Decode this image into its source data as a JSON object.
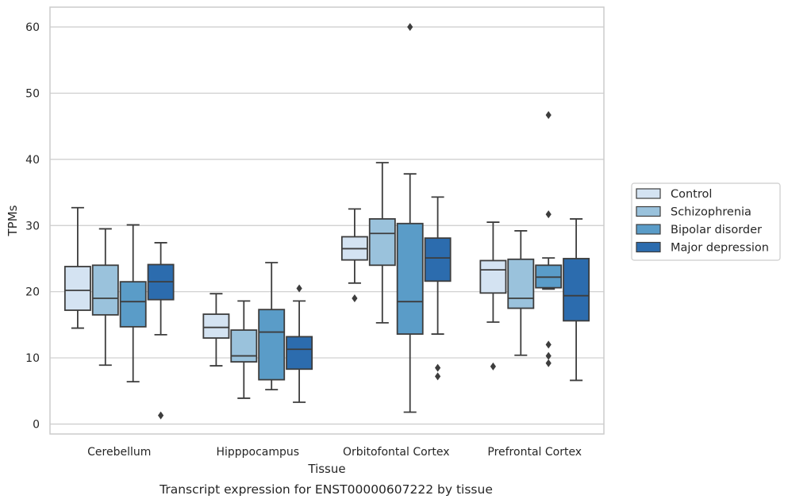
{
  "chart_data": {
    "type": "box",
    "title": "",
    "caption": "Transcript expression for ENST00000607222 by tissue",
    "xlabel": "Tissue",
    "ylabel": "TPMs",
    "ylim": [
      -1.5,
      63
    ],
    "yticks": [
      0,
      10,
      20,
      30,
      40,
      50,
      60
    ],
    "grid": "horizontal",
    "legend": "right-outside",
    "categories": [
      "Cerebellum",
      "Hipppocampus",
      "Orbitofontal Cortex",
      "Prefrontal Cortex"
    ],
    "series": [
      {
        "name": "Control",
        "color": "#d4e3f2",
        "boxes": [
          {
            "whislo": 14.5,
            "q1": 17.2,
            "med": 20.2,
            "q3": 23.8,
            "whishi": 32.7,
            "fliers": []
          },
          {
            "whislo": 8.8,
            "q1": 13.0,
            "med": 14.6,
            "q3": 16.6,
            "whishi": 19.7,
            "fliers": []
          },
          {
            "whislo": 21.3,
            "q1": 24.8,
            "med": 26.5,
            "q3": 28.3,
            "whishi": 32.5,
            "fliers": [
              19.0
            ]
          },
          {
            "whislo": 15.4,
            "q1": 19.8,
            "med": 23.3,
            "q3": 24.7,
            "whishi": 30.5,
            "fliers": [
              8.7
            ]
          }
        ]
      },
      {
        "name": "Schizophrenia",
        "color": "#9ac2dc",
        "boxes": [
          {
            "whislo": 8.9,
            "q1": 16.5,
            "med": 19.0,
            "q3": 24.0,
            "whishi": 29.5,
            "fliers": []
          },
          {
            "whislo": 3.9,
            "q1": 9.4,
            "med": 10.3,
            "q3": 14.2,
            "whishi": 18.6,
            "fliers": []
          },
          {
            "whislo": 15.3,
            "q1": 24.0,
            "med": 28.8,
            "q3": 31.0,
            "whishi": 39.5,
            "fliers": []
          },
          {
            "whislo": 10.4,
            "q1": 17.5,
            "med": 19.0,
            "q3": 24.9,
            "whishi": 29.2,
            "fliers": []
          }
        ]
      },
      {
        "name": "Bipolar disorder",
        "color": "#5a9cc8",
        "boxes": [
          {
            "whislo": 6.4,
            "q1": 14.7,
            "med": 18.5,
            "q3": 21.5,
            "whishi": 30.1,
            "fliers": []
          },
          {
            "whislo": 5.2,
            "q1": 6.7,
            "med": 13.9,
            "q3": 17.3,
            "whishi": 24.4,
            "fliers": []
          },
          {
            "whislo": 1.8,
            "q1": 13.6,
            "med": 18.5,
            "q3": 30.3,
            "whishi": 37.8,
            "fliers": [
              60.0
            ]
          },
          {
            "whislo": 20.4,
            "q1": 20.6,
            "med": 22.2,
            "q3": 24.0,
            "whishi": 25.1,
            "fliers": [
              46.7,
              31.7,
              12.0,
              10.3,
              9.2
            ]
          }
        ]
      },
      {
        "name": "Major depression",
        "color": "#2c6cae",
        "boxes": [
          {
            "whislo": 13.5,
            "q1": 18.8,
            "med": 21.5,
            "q3": 24.1,
            "whishi": 27.4,
            "fliers": [
              1.3
            ]
          },
          {
            "whislo": 3.3,
            "q1": 8.3,
            "med": 11.3,
            "q3": 13.2,
            "whishi": 18.6,
            "fliers": [
              20.5
            ]
          },
          {
            "whislo": 13.6,
            "q1": 21.6,
            "med": 25.1,
            "q3": 28.1,
            "whishi": 34.3,
            "fliers": [
              8.5,
              7.2
            ]
          },
          {
            "whislo": 6.6,
            "q1": 15.6,
            "med": 19.4,
            "q3": 25.0,
            "whishi": 31.0,
            "fliers": []
          }
        ]
      }
    ]
  }
}
